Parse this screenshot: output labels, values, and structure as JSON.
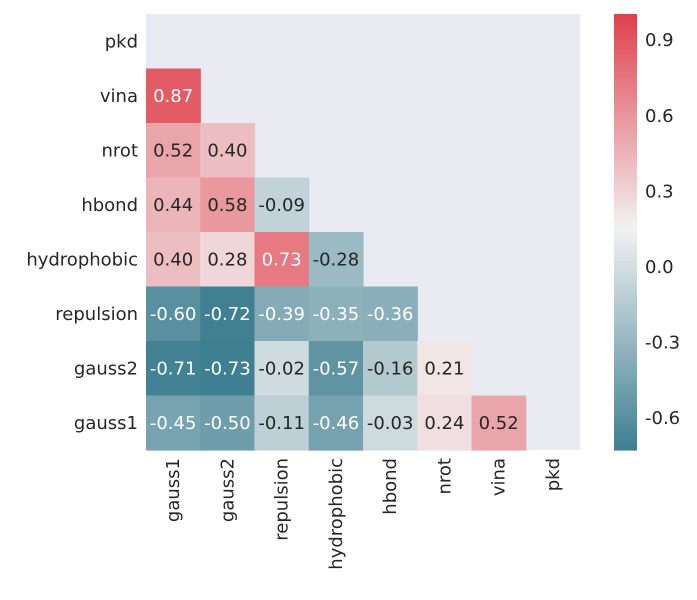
{
  "chart_data": {
    "type": "heatmap",
    "title": "",
    "xlabel": "",
    "ylabel": "",
    "row_labels": [
      "pkd",
      "vina",
      "nrot",
      "hbond",
      "hydrophobic",
      "repulsion",
      "gauss2",
      "gauss1"
    ],
    "col_labels": [
      "gauss1",
      "gauss2",
      "repulsion",
      "hydrophobic",
      "hbond",
      "nrot",
      "vina",
      "pkd"
    ],
    "values": [
      [
        null,
        null,
        null,
        null,
        null,
        null,
        null,
        null
      ],
      [
        0.87,
        null,
        null,
        null,
        null,
        null,
        null,
        null
      ],
      [
        0.52,
        0.4,
        null,
        null,
        null,
        null,
        null,
        null
      ],
      [
        0.44,
        0.58,
        -0.09,
        null,
        null,
        null,
        null,
        null
      ],
      [
        0.4,
        0.28,
        0.73,
        -0.28,
        null,
        null,
        null,
        null
      ],
      [
        -0.6,
        -0.72,
        -0.39,
        -0.35,
        -0.36,
        null,
        null,
        null
      ],
      [
        -0.71,
        -0.73,
        -0.02,
        -0.57,
        -0.16,
        0.21,
        null,
        null
      ],
      [
        -0.45,
        -0.5,
        -0.11,
        -0.46,
        -0.03,
        0.24,
        0.52,
        null
      ]
    ],
    "value_labels": [
      [
        null,
        null,
        null,
        null,
        null,
        null,
        null,
        null
      ],
      [
        "0.87",
        null,
        null,
        null,
        null,
        null,
        null,
        null
      ],
      [
        "0.52",
        "0.40",
        null,
        null,
        null,
        null,
        null,
        null
      ],
      [
        "0.44",
        "0.58",
        "-0.09",
        null,
        null,
        null,
        null,
        null
      ],
      [
        "0.40",
        "0.28",
        "0.73",
        "-0.28",
        null,
        null,
        null,
        null
      ],
      [
        "-0.60",
        "-0.72",
        "-0.39",
        "-0.35",
        "-0.36",
        null,
        null,
        null
      ],
      [
        "-0.71",
        "-0.73",
        "-0.02",
        "-0.57",
        "-0.16",
        "0.21",
        null,
        null
      ],
      [
        "-0.45",
        "-0.50",
        "-0.11",
        "-0.46",
        "-0.03",
        "0.24",
        "0.52",
        null
      ]
    ],
    "colorbar": {
      "vmin": -0.73,
      "vmax": 1.0,
      "ticks": [
        0.9,
        0.6,
        0.3,
        0.0,
        -0.3,
        -0.6
      ],
      "tick_labels": [
        "0.9",
        "0.6",
        "0.3",
        "0.0",
        "-0.3",
        "-0.6"
      ],
      "low_color": "#3f7f92",
      "mid_color": "#f2f2f2",
      "high_color": "#e0404c"
    },
    "background_color": "#eaeaf2",
    "grid": false
  }
}
